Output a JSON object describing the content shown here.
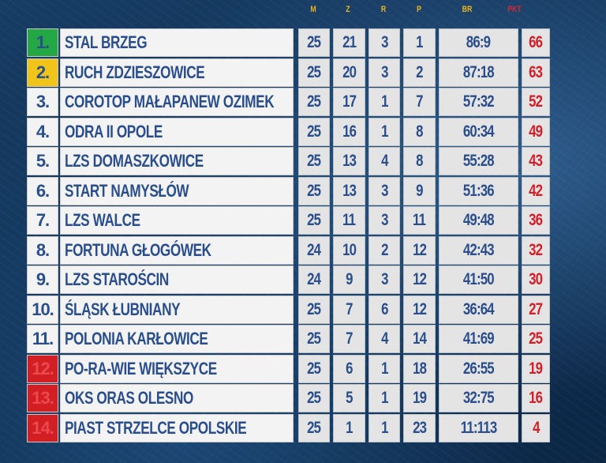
{
  "headers": {
    "m": "M",
    "z": "Z",
    "r": "R",
    "p": "P",
    "br": "BR",
    "pkt": "PKT"
  },
  "table": [
    {
      "pos": "1.",
      "team": "STAL BRZEG",
      "m": "25",
      "z": "21",
      "r": "3",
      "p": "1",
      "br": "86:9",
      "pkt": "66",
      "highlight": "green"
    },
    {
      "pos": "2.",
      "team": "RUCH ZDZIESZOWICE",
      "m": "25",
      "z": "20",
      "r": "3",
      "p": "2",
      "br": "87:18",
      "pkt": "63",
      "highlight": "yellow"
    },
    {
      "pos": "3.",
      "team": "COROTOP MAŁAPANEW OZIMEK",
      "m": "25",
      "z": "17",
      "r": "1",
      "p": "7",
      "br": "57:32",
      "pkt": "52",
      "highlight": "none"
    },
    {
      "pos": "4.",
      "team": "ODRA II OPOLE",
      "m": "25",
      "z": "16",
      "r": "1",
      "p": "8",
      "br": "60:34",
      "pkt": "49",
      "highlight": "none"
    },
    {
      "pos": "5.",
      "team": "LZS DOMASZKOWICE",
      "m": "25",
      "z": "13",
      "r": "4",
      "p": "8",
      "br": "55:28",
      "pkt": "43",
      "highlight": "none"
    },
    {
      "pos": "6.",
      "team": "START NAMYSŁÓW",
      "m": "25",
      "z": "13",
      "r": "3",
      "p": "9",
      "br": "51:36",
      "pkt": "42",
      "highlight": "none"
    },
    {
      "pos": "7.",
      "team": "LZS WALCE",
      "m": "25",
      "z": "11",
      "r": "3",
      "p": "11",
      "br": "49:48",
      "pkt": "36",
      "highlight": "none"
    },
    {
      "pos": "8.",
      "team": "FORTUNA GŁOGÓWEK",
      "m": "24",
      "z": "10",
      "r": "2",
      "p": "12",
      "br": "42:43",
      "pkt": "32",
      "highlight": "none"
    },
    {
      "pos": "9.",
      "team": "LZS STAROŚCIN",
      "m": "24",
      "z": "9",
      "r": "3",
      "p": "12",
      "br": "41:50",
      "pkt": "30",
      "highlight": "none"
    },
    {
      "pos": "10.",
      "team": "ŚLĄSK ŁUBNIANY",
      "m": "25",
      "z": "7",
      "r": "6",
      "p": "12",
      "br": "36:64",
      "pkt": "27",
      "highlight": "none"
    },
    {
      "pos": "11.",
      "team": "POLONIA KARŁOWICE",
      "m": "25",
      "z": "7",
      "r": "4",
      "p": "14",
      "br": "41:69",
      "pkt": "25",
      "highlight": "none"
    },
    {
      "pos": "12.",
      "team": "PO-RA-WIE WIĘKSZYCE",
      "m": "25",
      "z": "6",
      "r": "1",
      "p": "18",
      "br": "26:55",
      "pkt": "19",
      "highlight": "red"
    },
    {
      "pos": "13.",
      "team": "OKS ORAS OLESNO",
      "m": "25",
      "z": "5",
      "r": "1",
      "p": "19",
      "br": "32:75",
      "pkt": "16",
      "highlight": "red"
    },
    {
      "pos": "14.",
      "team": "PIAST STRZELCE OPOLSKIE",
      "m": "25",
      "z": "1",
      "r": "1",
      "p": "23",
      "br": "11:113",
      "pkt": "4",
      "highlight": "red"
    }
  ],
  "colors": {
    "green": "#24a845",
    "yellow": "#f0c419",
    "red": "#d31f24",
    "text_blue": "#2a4e8c",
    "points_red": "#d11f2a"
  }
}
